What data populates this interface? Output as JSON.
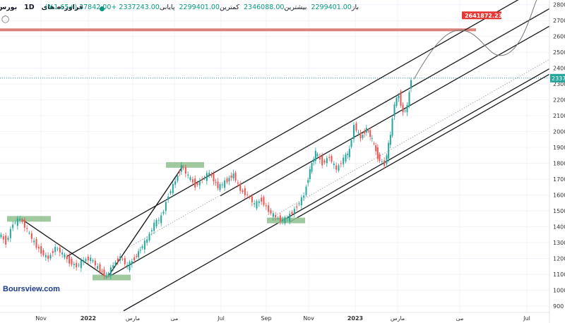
{
  "header": {
    "symbol": "فراورده های",
    "interval": "1D",
    "exchange": "بورس ایران",
    "ohlc_text": "باز",
    "open_label": "باز",
    "open": "2299401.00",
    "high_label": "بیشترین",
    "high": "2346088.00",
    "low_label": "کمترین",
    "low": "2299401.00",
    "close_label": "پایانی",
    "close": "2337243.00",
    "change": "+37842.00 (+1.65%)",
    "status_color": "#089981"
  },
  "watermark": "Boursview.com",
  "price_labels": {
    "resistance_value": "2641872.23",
    "resistance_color": "#e53935",
    "last_value": "2337",
    "last_color": "#26a69a"
  },
  "chart_data": {
    "type": "candlestick",
    "x_ticks": [
      "Nov",
      "2022",
      "مارس",
      "مى",
      "Jul",
      "Sep",
      "Nov",
      "2023",
      "مارس",
      "مى",
      "Jul"
    ],
    "y_ticks": [
      900,
      1000,
      1100,
      1200,
      1300,
      1400,
      1500,
      1600,
      1700,
      1800,
      1900,
      2000,
      2100,
      2200,
      2300,
      2400,
      2500,
      2600,
      2700,
      2800
    ],
    "y_unit_note": "",
    "ylim": [
      860,
      2830
    ],
    "resistance_level": 2641872.23,
    "last_price": 2337243.0,
    "highlighted_pivots": [
      {
        "label": "",
        "price": 1450
      },
      {
        "label": "",
        "price": 1080
      },
      {
        "label": "",
        "price": 1790
      },
      {
        "label": "",
        "price": 1440
      }
    ],
    "grid": true,
    "legend": "none"
  },
  "colors": {
    "up": "#26a69a",
    "down": "#ef5350",
    "channel_line": "#1b1b1b",
    "mid_line": "#9a9a9a",
    "zone_fill": "#8fbf8f",
    "resistance_band": "#d9837a",
    "projection": "#777777"
  }
}
